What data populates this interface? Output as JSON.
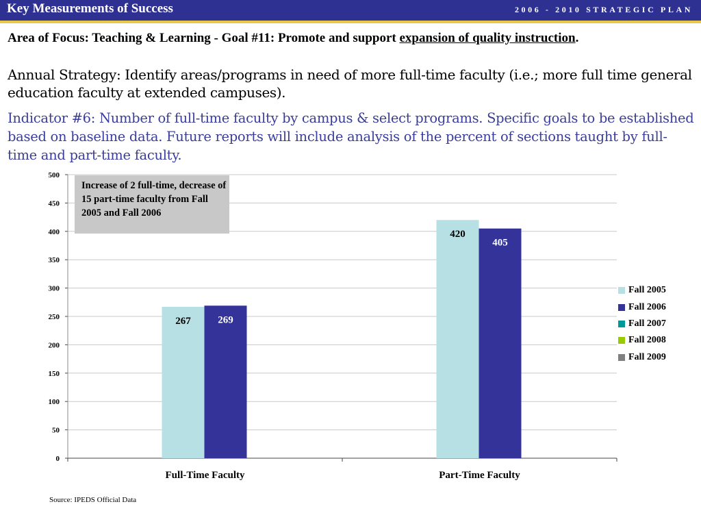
{
  "header": {
    "title": "Key Measurements of Success",
    "plan": "2006 - 2010 STRATEGIC PLAN"
  },
  "focus": {
    "prefix": "Area of Focus: Teaching & Learning - Goal #11: Promote and support ",
    "underlined": "expansion of quality instruction",
    "suffix": "."
  },
  "strategy": "Annual Strategy: Identify areas/programs in need of more full-time faculty (i.e.;  more full time general education faculty at extended campuses).",
  "indicator": "Indicator #6: Number of full-time faculty by campus & select programs.  Specific goals to be established based on baseline data. Future reports will include analysis of the percent of sections taught by full-time and part-time faculty.",
  "annotation": "Increase of 2 full-time, decrease of 15 part-time faculty from Fall 2005 and Fall 2006",
  "source": "Source:  IPEDS Official Data",
  "colors": {
    "header_bg": "#2e3192",
    "gold_rule": "#e8c84a",
    "indicator_text": "#3a3d9a"
  },
  "chart_data": {
    "type": "bar",
    "categories": [
      "Full-Time Faculty",
      "Part-Time Faculty"
    ],
    "series": [
      {
        "name": "Fall 2005",
        "color": "#b7e0e4",
        "values": [
          267,
          420
        ]
      },
      {
        "name": "Fall 2006",
        "color": "#333399",
        "values": [
          269,
          405
        ]
      },
      {
        "name": "Fall 2007",
        "color": "#009999",
        "values": [
          null,
          null
        ]
      },
      {
        "name": "Fall 2008",
        "color": "#99cc00",
        "values": [
          null,
          null
        ]
      },
      {
        "name": "Fall 2009",
        "color": "#808080",
        "values": [
          null,
          null
        ]
      }
    ],
    "ylim": [
      0,
      500
    ],
    "yticks": [
      0,
      50,
      100,
      150,
      200,
      250,
      300,
      350,
      400,
      450,
      500
    ],
    "grid": true,
    "legend": "right"
  }
}
